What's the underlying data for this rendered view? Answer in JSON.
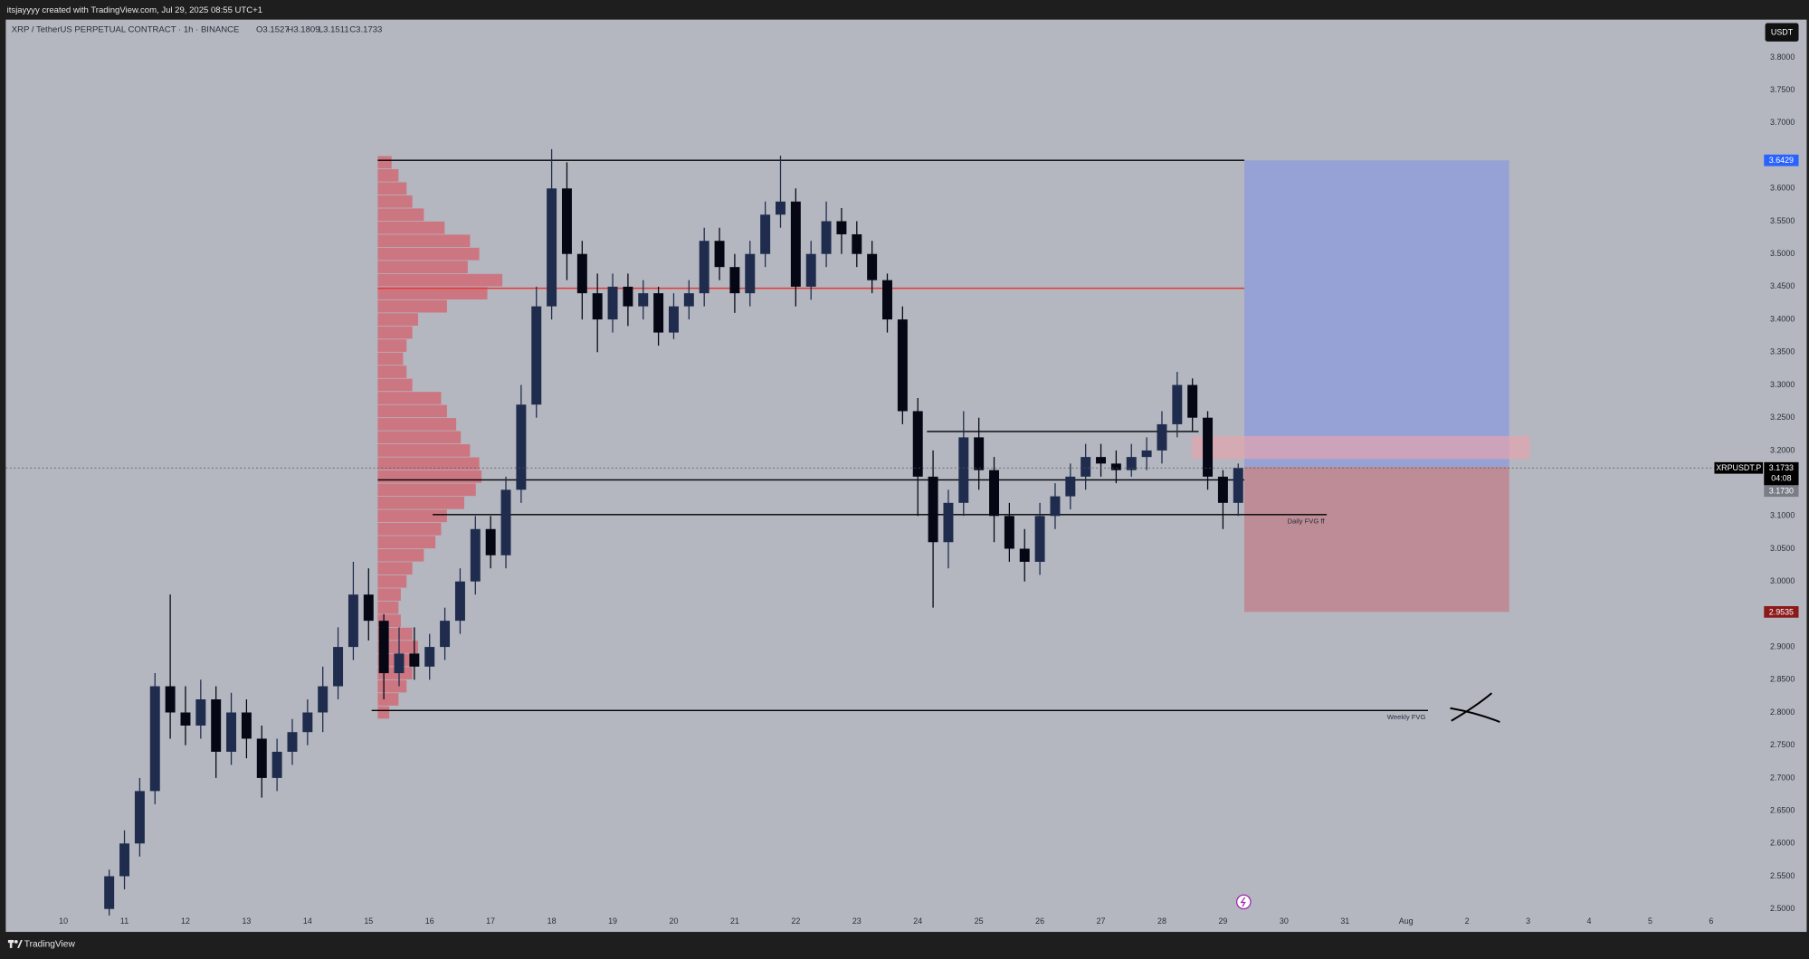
{
  "header": {
    "credit": "itsjayyyy created with TradingView.com, Jul 29, 2025 08:55 UTC+1"
  },
  "footer": {
    "brand": "TradingView"
  },
  "chart_data": {
    "type": "candlestick",
    "title": "XRP / TetherUS PERPETUAL CONTRACT · 1h · BINANCE",
    "ohlc_readout": [
      "O3.1527",
      "H3.1809",
      "L3.1511",
      "C3.1733"
    ],
    "currency": "USDT",
    "x": [
      10.75,
      11.0,
      11.25,
      11.5,
      11.75,
      12.0,
      12.25,
      12.5,
      12.75,
      13.0,
      13.25,
      13.5,
      13.75,
      14.0,
      14.25,
      14.5,
      14.75,
      15.0,
      15.25,
      15.5,
      15.75,
      16.0,
      16.25,
      16.5,
      16.75,
      17.0,
      17.25,
      17.5,
      17.75,
      18.0,
      18.25,
      18.5,
      18.75,
      19.0,
      19.25,
      19.5,
      19.75,
      20.0,
      20.25,
      20.5,
      20.75,
      21.0,
      21.25,
      21.5,
      21.75,
      22.0,
      22.25,
      22.5,
      22.75,
      23.0,
      23.25,
      23.5,
      23.75,
      24.0,
      24.25,
      24.5,
      24.75,
      25.0,
      25.25,
      25.5,
      25.75,
      26.0,
      26.25,
      26.5,
      26.75,
      27.0,
      27.25,
      27.5,
      27.75,
      28.0,
      28.25,
      28.5,
      28.75,
      29.0,
      29.25
    ],
    "open": [
      2.5,
      2.55,
      2.6,
      2.68,
      2.84,
      2.8,
      2.78,
      2.82,
      2.74,
      2.8,
      2.76,
      2.7,
      2.74,
      2.77,
      2.8,
      2.84,
      2.9,
      2.98,
      2.94,
      2.86,
      2.89,
      2.87,
      2.9,
      2.94,
      3.0,
      3.08,
      3.04,
      3.14,
      3.27,
      3.42,
      3.6,
      3.5,
      3.44,
      3.4,
      3.45,
      3.42,
      3.44,
      3.38,
      3.42,
      3.44,
      3.52,
      3.48,
      3.44,
      3.5,
      3.56,
      3.58,
      3.45,
      3.5,
      3.55,
      3.53,
      3.5,
      3.46,
      3.4,
      3.26,
      3.16,
      3.06,
      3.12,
      3.22,
      3.17,
      3.1,
      3.05,
      3.03,
      3.1,
      3.13,
      3.16,
      3.19,
      3.18,
      3.17,
      3.19,
      3.2,
      3.24,
      3.3,
      3.25,
      3.16,
      3.12
    ],
    "high": [
      2.56,
      2.62,
      2.7,
      2.86,
      2.98,
      2.84,
      2.85,
      2.84,
      2.83,
      2.82,
      2.78,
      2.76,
      2.79,
      2.82,
      2.87,
      2.93,
      3.03,
      3.02,
      2.95,
      2.93,
      2.93,
      2.92,
      2.96,
      3.02,
      3.1,
      3.1,
      3.16,
      3.3,
      3.45,
      3.66,
      3.64,
      3.52,
      3.47,
      3.47,
      3.47,
      3.46,
      3.45,
      3.44,
      3.46,
      3.54,
      3.54,
      3.5,
      3.52,
      3.58,
      3.65,
      3.6,
      3.52,
      3.58,
      3.57,
      3.55,
      3.52,
      3.47,
      3.42,
      3.28,
      3.2,
      3.14,
      3.26,
      3.25,
      3.19,
      3.12,
      3.08,
      3.12,
      3.15,
      3.18,
      3.21,
      3.21,
      3.2,
      3.21,
      3.22,
      3.26,
      3.32,
      3.31,
      3.26,
      3.17,
      3.18
    ],
    "low": [
      2.49,
      2.53,
      2.58,
      2.66,
      2.76,
      2.75,
      2.76,
      2.7,
      2.72,
      2.73,
      2.67,
      2.68,
      2.72,
      2.75,
      2.77,
      2.82,
      2.88,
      2.91,
      2.82,
      2.84,
      2.85,
      2.85,
      2.88,
      2.92,
      2.98,
      3.02,
      3.02,
      3.12,
      3.25,
      3.4,
      3.46,
      3.4,
      3.35,
      3.38,
      3.39,
      3.4,
      3.36,
      3.37,
      3.4,
      3.42,
      3.46,
      3.41,
      3.42,
      3.48,
      3.54,
      3.42,
      3.43,
      3.48,
      3.5,
      3.48,
      3.44,
      3.38,
      3.24,
      3.1,
      2.96,
      3.02,
      3.1,
      3.14,
      3.06,
      3.03,
      3.0,
      3.01,
      3.08,
      3.11,
      3.14,
      3.16,
      3.15,
      3.16,
      3.17,
      3.18,
      3.22,
      3.23,
      3.14,
      3.08,
      3.1
    ],
    "close": [
      2.55,
      2.6,
      2.68,
      2.84,
      2.8,
      2.78,
      2.82,
      2.74,
      2.8,
      2.76,
      2.7,
      2.74,
      2.77,
      2.8,
      2.84,
      2.9,
      2.98,
      2.94,
      2.86,
      2.89,
      2.87,
      2.9,
      2.94,
      3.0,
      3.08,
      3.04,
      3.14,
      3.27,
      3.42,
      3.6,
      3.5,
      3.44,
      3.4,
      3.45,
      3.42,
      3.44,
      3.38,
      3.42,
      3.44,
      3.52,
      3.48,
      3.44,
      3.5,
      3.56,
      3.58,
      3.45,
      3.5,
      3.55,
      3.53,
      3.5,
      3.46,
      3.4,
      3.26,
      3.16,
      3.06,
      3.12,
      3.22,
      3.17,
      3.1,
      3.05,
      3.03,
      3.1,
      3.13,
      3.16,
      3.19,
      3.18,
      3.17,
      3.19,
      3.2,
      3.24,
      3.3,
      3.25,
      3.16,
      3.12,
      3.1733
    ],
    "up_color": "#1f2c4d",
    "down_color": "#050814",
    "xlim": [
      9.055,
      37.79
    ],
    "xticks": [
      10,
      11,
      12,
      13,
      14,
      15,
      16,
      17,
      18,
      19,
      20,
      21,
      22,
      23,
      24,
      25,
      26,
      27,
      28,
      29,
      30,
      31,
      {
        "value": 32,
        "label": "Aug"
      },
      {
        "value": 33,
        "label": "2"
      },
      {
        "value": 34,
        "label": "3"
      },
      {
        "value": 35,
        "label": "4"
      },
      {
        "value": 36,
        "label": "5"
      },
      {
        "value": 37,
        "label": "6"
      }
    ],
    "ylim": [
      2.465,
      3.856
    ],
    "yticks": [
      {
        "value": 2.5,
        "label": "2.5000"
      },
      {
        "value": 2.55,
        "label": "2.5500"
      },
      {
        "value": 2.6,
        "label": "2.6000"
      },
      {
        "value": 2.65,
        "label": "2.6500"
      },
      {
        "value": 2.7,
        "label": "2.7000"
      },
      {
        "value": 2.75,
        "label": "2.7500"
      },
      {
        "value": 2.8,
        "label": "2.8000"
      },
      {
        "value": 2.85,
        "label": "2.8500"
      },
      {
        "value": 2.9,
        "label": "2.9000"
      },
      {
        "value": 2.95,
        "label": "2.9500"
      },
      {
        "value": 3.0,
        "label": "3.0000"
      },
      {
        "value": 3.05,
        "label": "3.0500"
      },
      {
        "value": 3.1,
        "label": "3.1000"
      },
      {
        "value": 3.15,
        "label": "3.1500"
      },
      {
        "value": 3.2,
        "label": "3.2000"
      },
      {
        "value": 3.25,
        "label": "3.2500"
      },
      {
        "value": 3.3,
        "label": "3.3000"
      },
      {
        "value": 3.35,
        "label": "3.3500"
      },
      {
        "value": 3.4,
        "label": "3.4000"
      },
      {
        "value": 3.45,
        "label": "3.4500"
      },
      {
        "value": 3.5,
        "label": "3.5000"
      },
      {
        "value": 3.55,
        "label": "3.5500"
      },
      {
        "value": 3.6,
        "label": "3.6000"
      },
      {
        "value": 3.7,
        "label": "3.7000"
      },
      {
        "value": 3.75,
        "label": "3.7500"
      },
      {
        "value": 3.8,
        "label": "3.8000"
      }
    ],
    "grid": false,
    "price_tags": {
      "symbol": "XRPUSDT.P",
      "countdown": "04:08",
      "second_price": "3.1730"
    },
    "volume_profile": {
      "x0": 15.15,
      "color": "#d4606c",
      "prices": [
        2.8,
        2.82,
        2.84,
        2.86,
        2.88,
        2.9,
        2.92,
        2.94,
        2.96,
        2.98,
        3.0,
        3.02,
        3.04,
        3.06,
        3.08,
        3.1,
        3.12,
        3.14,
        3.16,
        3.18,
        3.2,
        3.22,
        3.24,
        3.26,
        3.28,
        3.3,
        3.32,
        3.34,
        3.36,
        3.38,
        3.4,
        3.42,
        3.44,
        3.46,
        3.48,
        3.5,
        3.52,
        3.54,
        3.56,
        3.58,
        3.6,
        3.62,
        3.64
      ],
      "volumes": [
        10,
        18,
        25,
        30,
        35,
        35,
        30,
        20,
        18,
        20,
        25,
        30,
        40,
        50,
        55,
        60,
        75,
        85,
        90,
        88,
        80,
        72,
        68,
        60,
        55,
        30,
        25,
        22,
        25,
        30,
        35,
        60,
        95,
        108,
        78,
        88,
        80,
        58,
        40,
        30,
        25,
        18,
        12
      ]
    },
    "levels": [
      {
        "y": 3.6429,
        "x": [
          15.15,
          29.35
        ],
        "color": "#000000"
      },
      {
        "y": 3.155,
        "x": [
          15.15,
          29.35
        ],
        "color": "#000000"
      },
      {
        "y": 3.4476,
        "x": [
          15.15,
          29.35
        ],
        "color": "#e53935"
      },
      {
        "y": 3.229,
        "x": [
          24.15,
          28.6
        ],
        "color": "#000000"
      },
      {
        "y": 3.102,
        "x": [
          16.05,
          30.7
        ],
        "color": "#000000",
        "label": "Daily FVG ff"
      },
      {
        "y": 2.803,
        "x": [
          15.05,
          32.36
        ],
        "color": "#000000",
        "label": "Weekly FVG"
      }
    ],
    "position": {
      "x": [
        29.35,
        33.69
      ],
      "entry": 3.175,
      "target": 3.6429,
      "stop": 2.9535,
      "target_color": "#8c9bdc",
      "stop_color": "#c07e8a"
    },
    "zone": {
      "x": [
        28.49,
        34.03
      ],
      "y": [
        3.187,
        3.222
      ],
      "color": "#e3a4ae"
    }
  }
}
